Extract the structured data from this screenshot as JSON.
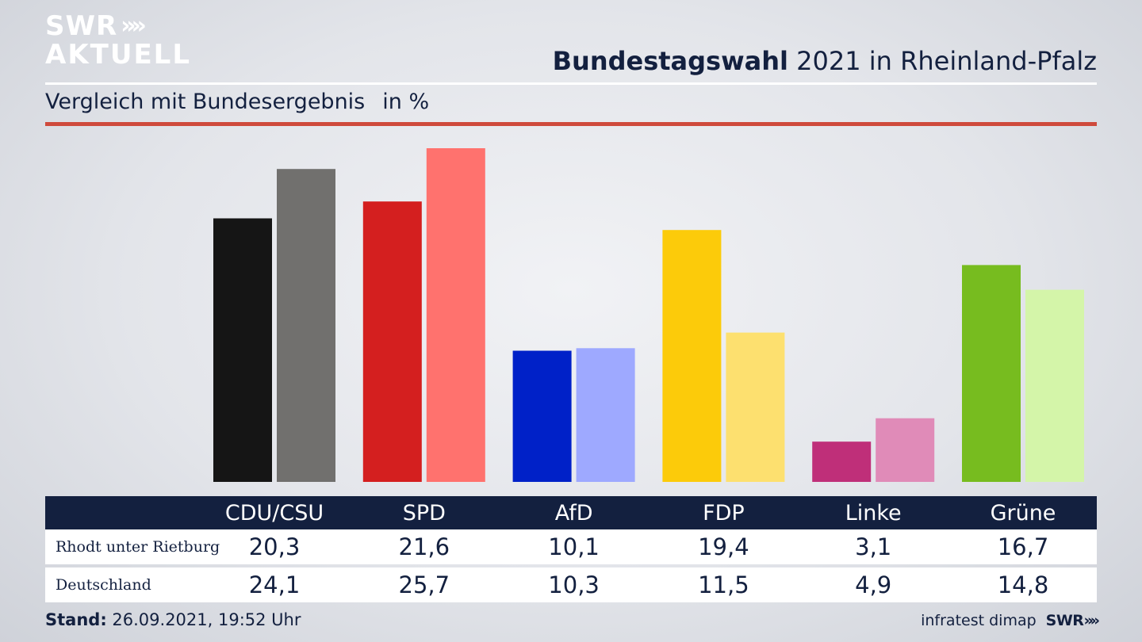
{
  "brand": {
    "logo_line1": "SWR",
    "logo_arrows": "»»",
    "logo_line2": "AKTUELL"
  },
  "header": {
    "title_bold": "Bundestagswahl",
    "title_rest": " 2021 in Rheinland-Pfalz"
  },
  "subtitle": {
    "text": "Vergleich mit Bundesergebnis",
    "unit": "in %"
  },
  "colors": {
    "rule_red": "#cf4a3c",
    "table_header_bg": "#13203f",
    "text_dark": "#13203f"
  },
  "chart_data": {
    "type": "bar",
    "categories": [
      "CDU/CSU",
      "SPD",
      "AfD",
      "FDP",
      "Linke",
      "Grüne"
    ],
    "series": [
      {
        "name": "Rhodt unter Rietburg",
        "values": [
          20.3,
          21.6,
          10.1,
          19.4,
          3.1,
          16.7
        ],
        "colors": [
          "#151515",
          "#d41f1f",
          "#0021c8",
          "#fccb0a",
          "#bf2f79",
          "#77bc1f"
        ]
      },
      {
        "name": "Deutschland",
        "values": [
          24.1,
          25.7,
          10.3,
          11.5,
          4.9,
          14.8
        ],
        "colors": [
          "#71706e",
          "#ff726e",
          "#9ea9ff",
          "#fde06f",
          "#e08bb8",
          "#d4f5a9"
        ]
      }
    ],
    "ylim": [
      0,
      25.7
    ],
    "grid": false
  },
  "table": {
    "headers": [
      "CDU/CSU",
      "SPD",
      "AfD",
      "FDP",
      "Linke",
      "Grüne"
    ],
    "rows": [
      {
        "label": "Rhodt unter Rietburg",
        "values": [
          "20,3",
          "21,6",
          "10,1",
          "19,4",
          "3,1",
          "16,7"
        ]
      },
      {
        "label": "Deutschland",
        "values": [
          "24,1",
          "25,7",
          "10,3",
          "11,5",
          "4,9",
          "14,8"
        ]
      }
    ]
  },
  "footer": {
    "stand_label": "Stand:",
    "stand_value": " 26.09.2021, 19:52 Uhr",
    "source": "infratest dimap",
    "brand": "SWR",
    "brand_arrows": "»»"
  }
}
